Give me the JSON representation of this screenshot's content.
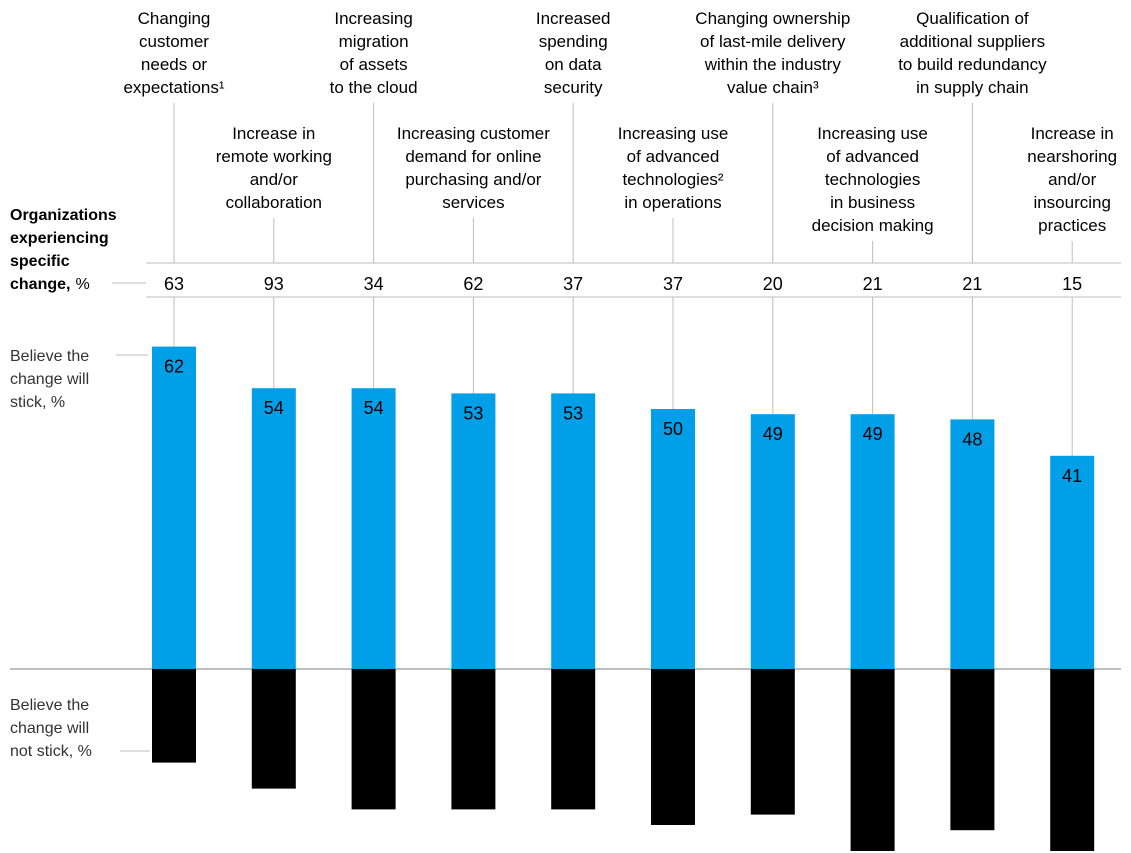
{
  "labels": {
    "experiencing_bold": [
      "Organizations",
      "experiencing",
      "specific",
      "change,"
    ],
    "experiencing_unit": "%",
    "stick": [
      "Believe the",
      "change will",
      "stick, %"
    ],
    "not_stick": [
      "Believe the",
      "change will",
      "not stick, %"
    ]
  },
  "colors": {
    "stick": "#009FE8",
    "not_stick": "#000000"
  },
  "chart_data": {
    "type": "bar",
    "categories": [
      "Changing customer needs or expectations¹",
      "Increase in remote working and/or collaboration",
      "Increasing migration of assets to the cloud",
      "Increasing customer demand for online purchasing and/or services",
      "Increased spending on data security",
      "Increasing use of advanced technologies² in operations",
      "Changing ownership of last-mile delivery within the industry value chain³",
      "Increasing use of advanced technologies in business decision making",
      "Qualification of additional suppliers to build redundancy in supply chain",
      "Increase in nearshoring and/or insourcing practices"
    ],
    "category_lines": [
      [
        "Changing",
        "customer",
        "needs or",
        "expectations¹"
      ],
      [
        "Increase in",
        "remote working",
        "and/or",
        "collaboration"
      ],
      [
        "Increasing",
        "migration",
        "of assets",
        "to the cloud"
      ],
      [
        "Increasing customer",
        "demand for online",
        "purchasing and/or",
        "services"
      ],
      [
        "Increased",
        "spending",
        "on data",
        "security"
      ],
      [
        "Increasing use",
        "of advanced",
        "technologies²",
        "in operations"
      ],
      [
        "Changing ownership",
        "of last-mile delivery",
        "within the industry",
        "value chain³"
      ],
      [
        "Increasing use",
        "of advanced",
        "technologies",
        "in business",
        "decision making"
      ],
      [
        "Qualification of",
        "additional suppliers",
        "to build redundancy",
        "in supply chain"
      ],
      [
        "Increase in",
        "nearshoring",
        "and/or",
        "insourcing",
        "practices"
      ]
    ],
    "experiencing": [
      63,
      93,
      34,
      62,
      37,
      37,
      20,
      21,
      21,
      15
    ],
    "series": [
      {
        "name": "Believe the change will stick, %",
        "values": [
          62,
          54,
          54,
          53,
          53,
          50,
          49,
          49,
          48,
          41
        ]
      },
      {
        "name": "Believe the change will not stick, %",
        "values": [
          18,
          23,
          27,
          27,
          27,
          30,
          28,
          35,
          31,
          35
        ]
      }
    ]
  }
}
